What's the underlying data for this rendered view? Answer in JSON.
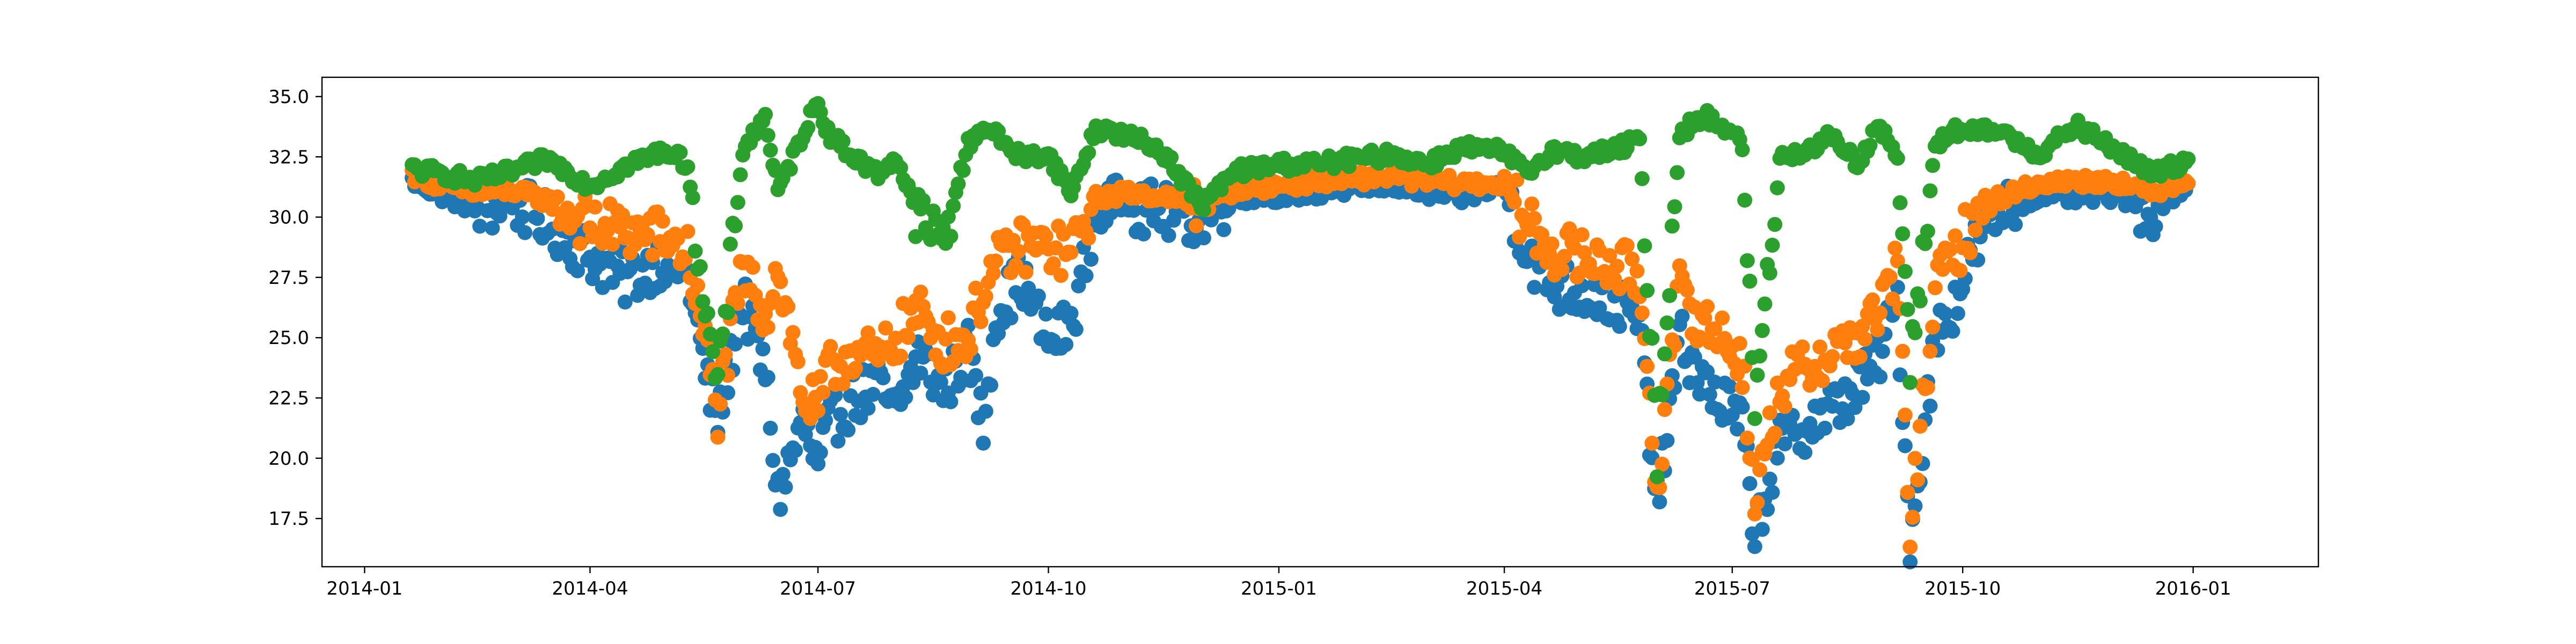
{
  "chart_data": {
    "type": "scatter",
    "title": "",
    "xlabel": "",
    "ylabel": "",
    "xlim": [
      "2013-12-15",
      "2016-02-20"
    ],
    "ylim": [
      15.5,
      35.8
    ],
    "grid": false,
    "legend": "none",
    "x_ticks": [
      "2014-01",
      "2014-04",
      "2014-07",
      "2014-10",
      "2015-01",
      "2015-04",
      "2015-07",
      "2015-10",
      "2016-01"
    ],
    "y_ticks": [
      "17.5",
      "20.0",
      "22.5",
      "25.0",
      "27.5",
      "30.0",
      "32.5",
      "35.0"
    ],
    "sampling": "daily values shown; original shows many points per day",
    "series": [
      {
        "color": "#1f77b4",
        "role": "lower",
        "points": [
          [
            "2014-01-20",
            31.5
          ],
          [
            "2014-02-01",
            30.9
          ],
          [
            "2014-02-15",
            30.3
          ],
          [
            "2014-03-01",
            30.6
          ],
          [
            "2014-03-15",
            29.8
          ],
          [
            "2014-04-01",
            28.4
          ],
          [
            "2014-04-15",
            27.4
          ],
          [
            "2014-05-01",
            28.3
          ],
          [
            "2014-05-10",
            27.6
          ],
          [
            "2014-05-18",
            23.0
          ],
          [
            "2014-05-22",
            21.6
          ],
          [
            "2014-06-01",
            26.6
          ],
          [
            "2014-06-10",
            23.5
          ],
          [
            "2014-06-15",
            18.4
          ],
          [
            "2014-06-25",
            21.5
          ],
          [
            "2014-07-01",
            19.5
          ],
          [
            "2014-07-05",
            21.3
          ],
          [
            "2014-07-15",
            22.5
          ],
          [
            "2014-07-25",
            23.0
          ],
          [
            "2014-08-01",
            21.8
          ],
          [
            "2014-08-10",
            24.3
          ],
          [
            "2014-08-20",
            22.8
          ],
          [
            "2014-08-30",
            24.5
          ],
          [
            "2014-09-05",
            21.3
          ],
          [
            "2014-09-10",
            26.0
          ],
          [
            "2014-09-20",
            27.5
          ],
          [
            "2014-10-01",
            24.8
          ],
          [
            "2014-10-10",
            25.5
          ],
          [
            "2014-10-20",
            30.2
          ],
          [
            "2014-11-01",
            30.6
          ],
          [
            "2014-11-15",
            30.2
          ],
          [
            "2014-12-01",
            29.9
          ],
          [
            "2014-12-15",
            30.8
          ],
          [
            "2015-01-01",
            30.9
          ],
          [
            "2015-01-15",
            31.0
          ],
          [
            "2015-02-01",
            31.2
          ],
          [
            "2015-02-15",
            31.3
          ],
          [
            "2015-03-01",
            31.0
          ],
          [
            "2015-03-15",
            30.8
          ],
          [
            "2015-04-01",
            31.3
          ],
          [
            "2015-04-10",
            28.5
          ],
          [
            "2015-04-20",
            27.2
          ],
          [
            "2015-05-01",
            26.9
          ],
          [
            "2015-05-15",
            26.6
          ],
          [
            "2015-05-25",
            25.5
          ],
          [
            "2015-06-01",
            18.0
          ],
          [
            "2015-06-10",
            25.0
          ],
          [
            "2015-06-20",
            23.0
          ],
          [
            "2015-06-30",
            22.0
          ],
          [
            "2015-07-05",
            21.3
          ],
          [
            "2015-07-10",
            17.0
          ],
          [
            "2015-07-20",
            20.5
          ],
          [
            "2015-08-01",
            21.5
          ],
          [
            "2015-08-10",
            22.0
          ],
          [
            "2015-08-20",
            23.0
          ],
          [
            "2015-08-28",
            24.0
          ],
          [
            "2015-09-05",
            26.5
          ],
          [
            "2015-09-10",
            16.3
          ],
          [
            "2015-09-20",
            25.0
          ],
          [
            "2015-09-28",
            26.5
          ],
          [
            "2015-10-05",
            28.6
          ],
          [
            "2015-10-15",
            30.2
          ],
          [
            "2015-11-01",
            30.9
          ],
          [
            "2015-11-15",
            30.8
          ],
          [
            "2015-12-01",
            30.9
          ],
          [
            "2015-12-15",
            30.3
          ],
          [
            "2015-12-30",
            31.3
          ]
        ]
      },
      {
        "color": "#ff7f0e",
        "role": "middle",
        "points": [
          [
            "2014-01-20",
            31.8
          ],
          [
            "2014-02-01",
            31.3
          ],
          [
            "2014-02-15",
            31.0
          ],
          [
            "2014-03-01",
            31.1
          ],
          [
            "2014-03-15",
            30.7
          ],
          [
            "2014-04-01",
            29.7
          ],
          [
            "2014-04-15",
            29.4
          ],
          [
            "2014-05-01",
            29.2
          ],
          [
            "2014-05-10",
            28.5
          ],
          [
            "2014-05-18",
            24.2
          ],
          [
            "2014-05-22",
            21.9
          ],
          [
            "2014-06-01",
            27.8
          ],
          [
            "2014-06-10",
            26.0
          ],
          [
            "2014-06-15",
            28.0
          ],
          [
            "2014-06-25",
            22.5
          ],
          [
            "2014-07-01",
            22.0
          ],
          [
            "2014-07-05",
            23.5
          ],
          [
            "2014-07-15",
            24.5
          ],
          [
            "2014-07-25",
            24.0
          ],
          [
            "2014-08-01",
            25.0
          ],
          [
            "2014-08-10",
            26.0
          ],
          [
            "2014-08-20",
            24.8
          ],
          [
            "2014-08-30",
            25.0
          ],
          [
            "2014-09-05",
            27.0
          ],
          [
            "2014-09-10",
            28.0
          ],
          [
            "2014-09-20",
            28.8
          ],
          [
            "2014-10-01",
            28.7
          ],
          [
            "2014-10-10",
            28.5
          ],
          [
            "2014-10-20",
            30.8
          ],
          [
            "2014-11-01",
            31.0
          ],
          [
            "2014-11-15",
            30.9
          ],
          [
            "2014-12-01",
            30.4
          ],
          [
            "2014-12-15",
            31.2
          ],
          [
            "2015-01-01",
            31.3
          ],
          [
            "2015-01-15",
            31.5
          ],
          [
            "2015-02-01",
            31.6
          ],
          [
            "2015-02-15",
            31.7
          ],
          [
            "2015-03-01",
            31.5
          ],
          [
            "2015-03-15",
            31.4
          ],
          [
            "2015-04-01",
            31.4
          ],
          [
            "2015-04-10",
            29.7
          ],
          [
            "2015-04-20",
            28.7
          ],
          [
            "2015-05-01",
            28.3
          ],
          [
            "2015-05-15",
            28.0
          ],
          [
            "2015-05-25",
            27.5
          ],
          [
            "2015-06-01",
            18.8
          ],
          [
            "2015-06-10",
            27.0
          ],
          [
            "2015-06-20",
            25.5
          ],
          [
            "2015-06-30",
            24.8
          ],
          [
            "2015-07-05",
            24.0
          ],
          [
            "2015-07-10",
            18.2
          ],
          [
            "2015-07-20",
            23.0
          ],
          [
            "2015-08-01",
            23.8
          ],
          [
            "2015-08-10",
            24.5
          ],
          [
            "2015-08-20",
            25.0
          ],
          [
            "2015-08-28",
            26.0
          ],
          [
            "2015-09-05",
            28.0
          ],
          [
            "2015-09-10",
            17.0
          ],
          [
            "2015-09-20",
            27.0
          ],
          [
            "2015-09-28",
            28.5
          ],
          [
            "2015-10-05",
            29.8
          ],
          [
            "2015-10-15",
            30.8
          ],
          [
            "2015-11-01",
            31.4
          ],
          [
            "2015-11-15",
            31.5
          ],
          [
            "2015-12-01",
            31.5
          ],
          [
            "2015-12-15",
            31.0
          ],
          [
            "2015-12-30",
            31.6
          ]
        ]
      },
      {
        "color": "#2ca02c",
        "role": "upper",
        "points": [
          [
            "2014-01-20",
            32.0
          ],
          [
            "2014-02-01",
            31.8
          ],
          [
            "2014-02-15",
            31.5
          ],
          [
            "2014-03-01",
            31.9
          ],
          [
            "2014-03-15",
            32.4
          ],
          [
            "2014-04-01",
            31.3
          ],
          [
            "2014-04-15",
            32.1
          ],
          [
            "2014-05-01",
            32.8
          ],
          [
            "2014-05-10",
            32.2
          ],
          [
            "2014-05-18",
            25.5
          ],
          [
            "2014-05-22",
            22.8
          ],
          [
            "2014-06-01",
            32.8
          ],
          [
            "2014-06-10",
            34.2
          ],
          [
            "2014-06-15",
            31.0
          ],
          [
            "2014-06-25",
            33.5
          ],
          [
            "2014-07-01",
            34.8
          ],
          [
            "2014-07-05",
            33.5
          ],
          [
            "2014-07-15",
            32.5
          ],
          [
            "2014-07-25",
            31.8
          ],
          [
            "2014-08-01",
            32.5
          ],
          [
            "2014-08-10",
            30.0
          ],
          [
            "2014-08-20",
            29.0
          ],
          [
            "2014-08-30",
            33.0
          ],
          [
            "2014-09-05",
            33.8
          ],
          [
            "2014-09-10",
            33.4
          ],
          [
            "2014-09-20",
            32.5
          ],
          [
            "2014-10-01",
            32.6
          ],
          [
            "2014-10-10",
            31.0
          ],
          [
            "2014-10-20",
            33.7
          ],
          [
            "2014-11-01",
            33.4
          ],
          [
            "2014-11-15",
            32.8
          ],
          [
            "2014-12-01",
            30.5
          ],
          [
            "2014-12-15",
            31.9
          ],
          [
            "2015-01-01",
            32.2
          ],
          [
            "2015-01-15",
            32.2
          ],
          [
            "2015-02-01",
            32.4
          ],
          [
            "2015-02-15",
            32.6
          ],
          [
            "2015-03-01",
            32.2
          ],
          [
            "2015-03-15",
            32.9
          ],
          [
            "2015-04-01",
            32.7
          ],
          [
            "2015-04-10",
            31.8
          ],
          [
            "2015-04-20",
            32.8
          ],
          [
            "2015-05-01",
            32.5
          ],
          [
            "2015-05-15",
            32.8
          ],
          [
            "2015-05-25",
            33.2
          ],
          [
            "2015-06-01",
            20.3
          ],
          [
            "2015-06-10",
            33.5
          ],
          [
            "2015-06-20",
            34.2
          ],
          [
            "2015-06-30",
            33.6
          ],
          [
            "2015-07-05",
            33.0
          ],
          [
            "2015-07-10",
            22.0
          ],
          [
            "2015-07-20",
            32.5
          ],
          [
            "2015-08-01",
            32.8
          ],
          [
            "2015-08-10",
            33.4
          ],
          [
            "2015-08-20",
            32.2
          ],
          [
            "2015-08-28",
            33.8
          ],
          [
            "2015-09-05",
            32.5
          ],
          [
            "2015-09-10",
            23.5
          ],
          [
            "2015-09-20",
            33.0
          ],
          [
            "2015-09-28",
            33.6
          ],
          [
            "2015-10-05",
            33.5
          ],
          [
            "2015-10-15",
            33.6
          ],
          [
            "2015-11-01",
            32.6
          ],
          [
            "2015-11-15",
            33.8
          ],
          [
            "2015-12-01",
            32.8
          ],
          [
            "2015-12-15",
            31.8
          ],
          [
            "2015-12-30",
            32.3
          ]
        ]
      }
    ]
  }
}
